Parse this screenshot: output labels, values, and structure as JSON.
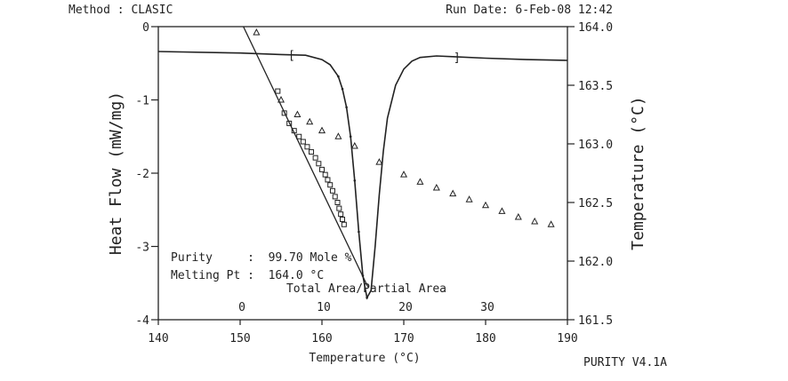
{
  "header": {
    "method": "Method : CLASIC",
    "run_date": "Run Date: 6-Feb-08 12:42"
  },
  "footer": {
    "version": "PURITY V4.1A"
  },
  "chart_data": {
    "type": "line",
    "x_label": "Temperature (°C)",
    "y_left_label": "Heat Flow (mW/mg)",
    "y_right_label": "Temperature (°C)",
    "x_range": [
      140,
      190
    ],
    "y_left_range": [
      -4,
      0
    ],
    "y_right_range": [
      161.5,
      164.0
    ],
    "x_ticks": [
      140,
      150,
      160,
      170,
      180,
      190
    ],
    "y_left_ticks": [
      0,
      -1,
      -2,
      -3,
      -4
    ],
    "y_right_ticks": [
      "164.0",
      "163.5",
      "163.0",
      "162.5",
      "162.0",
      "161.5"
    ],
    "top_axis": {
      "label": "Total Area/Partial Area",
      "ticks": [
        0,
        10,
        20,
        30
      ]
    },
    "annotations": {
      "purity": "Purity     :  99.70 Mole %",
      "melting_pt": "Melting Pt :  164.0 °C"
    },
    "integration_markers": {
      "start_temp": 156.3,
      "end_temp": 176.5,
      "start_symbol": "[",
      "end_symbol": "]"
    },
    "series": [
      {
        "kind": "heat_flow_curve",
        "points": [
          [
            140,
            -0.34
          ],
          [
            150,
            -0.36
          ],
          [
            155,
            -0.38
          ],
          [
            158,
            -0.39
          ],
          [
            160,
            -0.45
          ],
          [
            161,
            -0.52
          ],
          [
            162,
            -0.68
          ],
          [
            162.5,
            -0.85
          ],
          [
            163,
            -1.1
          ],
          [
            163.5,
            -1.5
          ],
          [
            164,
            -2.1
          ],
          [
            164.5,
            -2.8
          ],
          [
            165,
            -3.4
          ],
          [
            165.5,
            -3.7
          ],
          [
            166,
            -3.6
          ],
          [
            166.5,
            -3.0
          ],
          [
            167,
            -2.3
          ],
          [
            167.5,
            -1.7
          ],
          [
            168,
            -1.25
          ],
          [
            169,
            -0.8
          ],
          [
            170,
            -0.58
          ],
          [
            171,
            -0.47
          ],
          [
            172,
            -0.42
          ],
          [
            174,
            -0.4
          ],
          [
            176,
            -0.41
          ],
          [
            180,
            -0.43
          ],
          [
            185,
            -0.45
          ],
          [
            190,
            -0.46
          ]
        ]
      },
      {
        "kind": "purity_fit_line",
        "points": [
          [
            150.4,
            0.0
          ],
          [
            165.6,
            -3.55
          ]
        ]
      },
      {
        "kind": "corrected_points",
        "marker": "triangle",
        "points": [
          [
            152,
            -0.08
          ],
          [
            155,
            -1.0
          ],
          [
            157,
            -1.2
          ],
          [
            158.5,
            -1.3
          ],
          [
            160,
            -1.42
          ],
          [
            162,
            -1.5
          ],
          [
            164,
            -1.63
          ],
          [
            167,
            -1.85
          ],
          [
            170,
            -2.02
          ],
          [
            172,
            -2.12
          ],
          [
            174,
            -2.2
          ],
          [
            176,
            -2.28
          ],
          [
            178,
            -2.36
          ],
          [
            180,
            -2.44
          ],
          [
            182,
            -2.52
          ],
          [
            184,
            -2.6
          ],
          [
            186,
            -2.66
          ],
          [
            188,
            -2.7
          ]
        ]
      },
      {
        "kind": "raw_points",
        "marker": "square",
        "points": [
          [
            154.6,
            -0.88
          ],
          [
            155.4,
            -1.18
          ],
          [
            156,
            -1.32
          ],
          [
            156.6,
            -1.42
          ],
          [
            157.2,
            -1.5
          ],
          [
            157.7,
            -1.57
          ],
          [
            158.2,
            -1.64
          ],
          [
            158.7,
            -1.71
          ],
          [
            159.2,
            -1.79
          ],
          [
            159.6,
            -1.87
          ],
          [
            160,
            -1.95
          ],
          [
            160.4,
            -2.02
          ],
          [
            160.7,
            -2.09
          ],
          [
            161,
            -2.16
          ],
          [
            161.3,
            -2.24
          ],
          [
            161.6,
            -2.32
          ],
          [
            161.9,
            -2.4
          ],
          [
            162.1,
            -2.48
          ],
          [
            162.3,
            -2.56
          ],
          [
            162.5,
            -2.63
          ],
          [
            162.7,
            -2.7
          ]
        ]
      }
    ]
  }
}
